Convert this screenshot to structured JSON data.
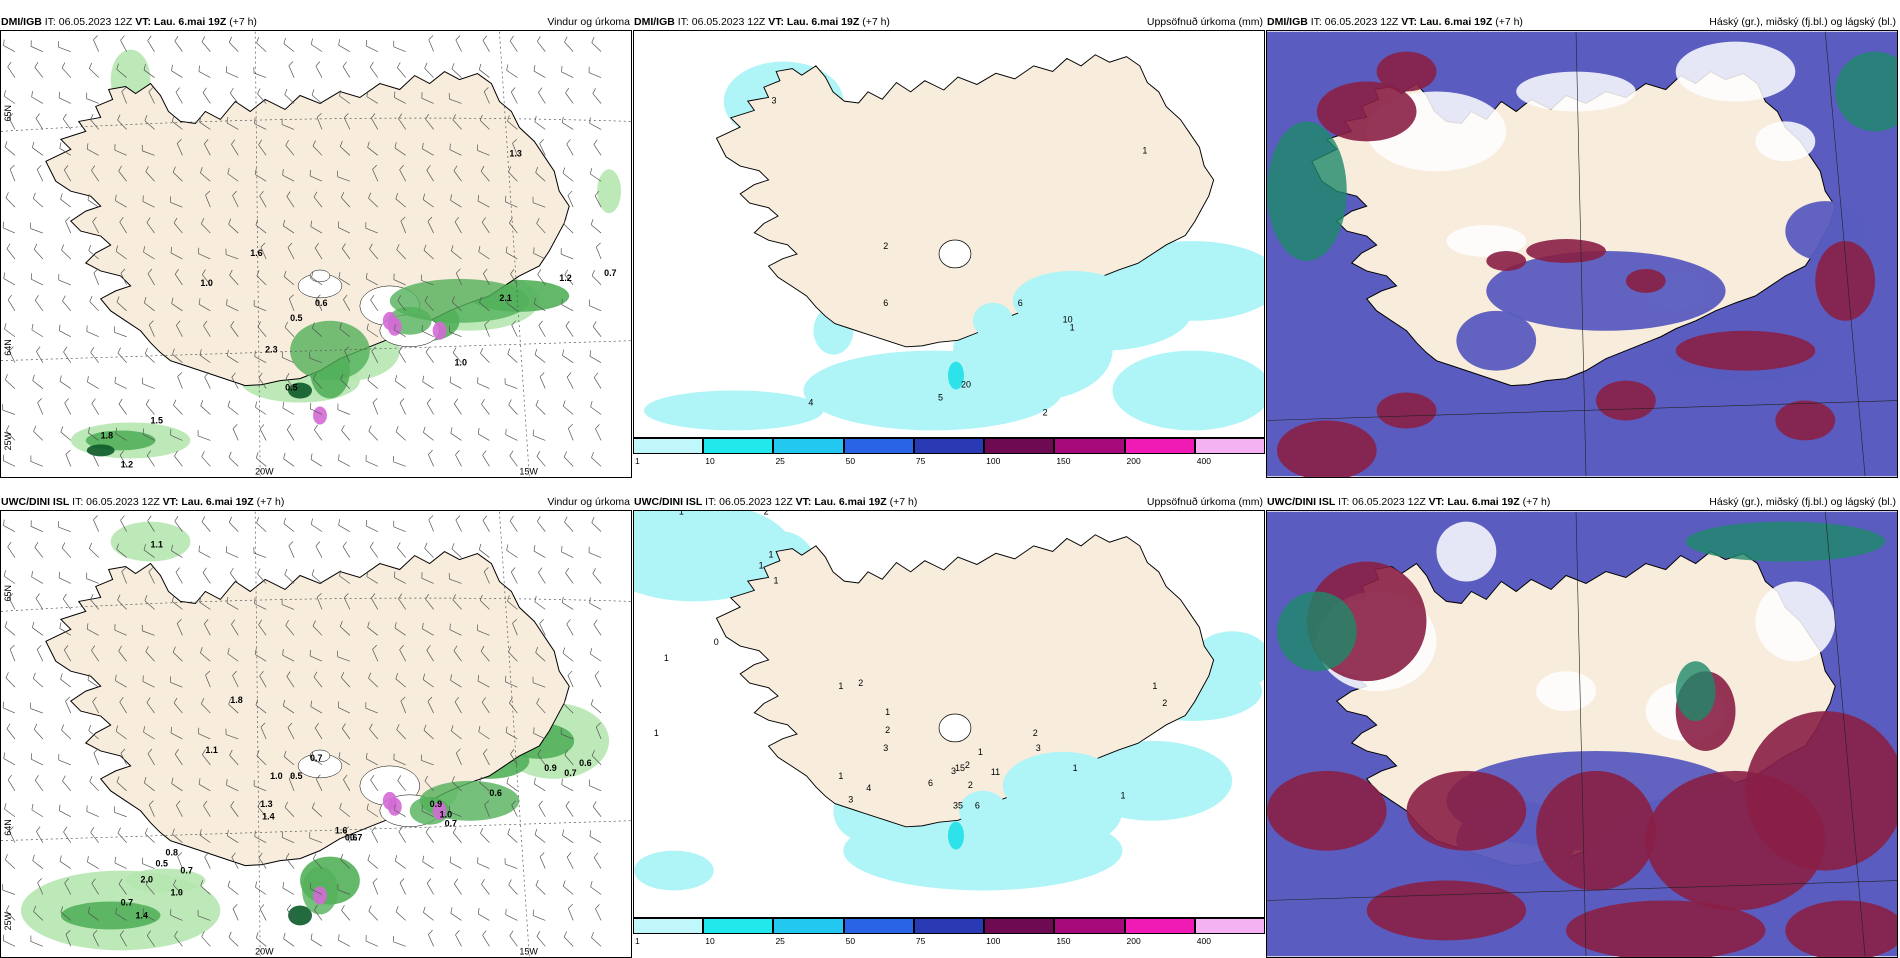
{
  "panels": [
    {
      "model": "DMI/IGB",
      "it_label": " IT: 06.05.2023 12Z ",
      "vt_label": "VT: Lau. 6.mai 19Z",
      "lead": " (+7 h)",
      "product": "Vindur og úrkoma",
      "values": [
        "1.3",
        "1.6",
        "1.0",
        "0.6",
        "0.5",
        "0.7",
        "1.2",
        "2.3",
        "2.1",
        "0.5",
        "1.0",
        "1.8",
        "1.5",
        "1.2"
      ],
      "axis": {
        "lat1": "65N",
        "lat2": "64N",
        "lat3": "25W",
        "lon1": "20W",
        "lon2": "15W"
      }
    },
    {
      "model": "DMI/IGB",
      "it_label": " IT: 06.05.2023 12Z ",
      "vt_label": "VT: Lau. 6.mai 19Z",
      "lead": " (+7 h)",
      "product": "Uppsöfnuð úrkoma (mm)",
      "values": [
        "3",
        "1",
        "2",
        "6",
        "6",
        "10",
        "1",
        "20",
        "5",
        "4",
        "2"
      ]
    },
    {
      "model": "DMI/IGB",
      "it_label": " IT: 06.05.2023 12Z ",
      "vt_label": "VT: Lau. 6.mai 19Z",
      "lead": " (+7 h)",
      "product": "Háský (gr.), miðský (fj.bl.) og lágský (bl.)"
    },
    {
      "model": "UWC/DINI ISL",
      "it_label": " IT: 06.05.2023 12Z ",
      "vt_label": "VT: Lau. 6.mai 19Z",
      "lead": " (+7 h)",
      "product": "Vindur og úrkoma",
      "values": [
        "1.1",
        "1.8",
        "1.1",
        "0.5",
        "0.7",
        "1.0",
        "1.3",
        "1.4",
        "1.6",
        "0.7",
        "0.6",
        "0.9",
        "1.0",
        "0.7",
        "0.8",
        "0.5",
        "0.7",
        "2.0",
        "1.0",
        "0.7",
        "1.4",
        "0.6",
        "0.9",
        "0.7",
        "0.6"
      ],
      "axis": {
        "lat1": "65N",
        "lat2": "64N",
        "lat3": "25W",
        "lon1": "20W",
        "lon2": "15W"
      }
    },
    {
      "model": "UWC/DINI ISL",
      "it_label": " IT: 06.05.2023 12Z ",
      "vt_label": "VT: Lau. 6.mai 19Z",
      "lead": " (+7 h)",
      "product": "Uppsöfnuð úrkoma (mm)",
      "values": [
        "1",
        "2",
        "1",
        "1",
        "1",
        "0",
        "1",
        "2",
        "1",
        "1",
        "2",
        "3",
        "1",
        "15",
        "11",
        "35",
        "6",
        "4",
        "3",
        "6",
        "2",
        "2",
        "3",
        "1",
        "2",
        "3",
        "1",
        "1",
        "2",
        "1",
        "1"
      ]
    },
    {
      "model": "UWC/DINI ISL",
      "it_label": " IT: 06.05.2023 12Z ",
      "vt_label": "VT: Lau. 6.mai 19Z",
      "lead": " (+7 h)",
      "product": "Háský (gr.), miðský (fj.bl.) og lágský (bl.)"
    }
  ],
  "colorbar": {
    "ticks": [
      "1",
      "10",
      "25",
      "50",
      "75",
      "100",
      "150",
      "200",
      "400"
    ],
    "colors": [
      "#bff7fa",
      "#22e8ec",
      "#22c8f0",
      "#2a64e6",
      "#2a3ab4",
      "#6e0a52",
      "#a60a7a",
      "#f01ab4",
      "#f5b2f2"
    ]
  },
  "colors": {
    "land": "#f8ecdc",
    "coast": "#000000",
    "rain_light": "#b6e7b0",
    "rain_mid": "#52b05a",
    "rain_dark": "#0c5a2a",
    "precip_light": "#aff4f7",
    "precip_mid": "#2ee2ea",
    "cloud_low": "#5a5cbf",
    "cloud_mid": "#8a1f45",
    "cloud_high": "#1e8a6a"
  }
}
